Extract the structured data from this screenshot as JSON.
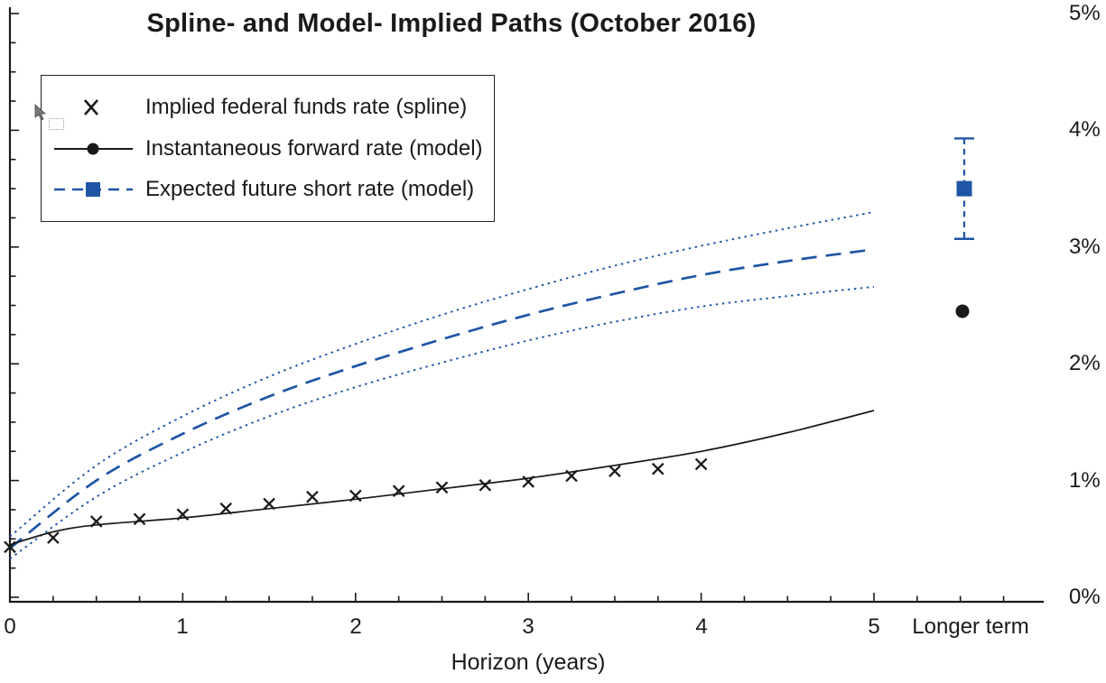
{
  "chart_data": {
    "type": "line",
    "title": "Spline- and Model- Implied Paths (October 2016)",
    "xlabel": "Horizon (years)",
    "ylabel": "",
    "units": "%",
    "xlim": [
      0,
      5
    ],
    "ylim": [
      0,
      5
    ],
    "grid": false,
    "legend_position": "top-left",
    "x_ticks": [
      "0",
      "1",
      "2",
      "3",
      "4",
      "5"
    ],
    "longer_term_label": "Longer term",
    "y_ticks": [
      "0%",
      "1%",
      "2%",
      "3%",
      "4%",
      "5%"
    ],
    "colors": {
      "blue": "#1f55a4",
      "black": "#1a1a1a"
    },
    "series": [
      {
        "name": "Implied federal funds rate (spline)",
        "type": "scatter",
        "marker": "x",
        "color": "#1a1a1a",
        "x": [
          0,
          0.25,
          0.5,
          0.75,
          1,
          1.25,
          1.5,
          1.75,
          2,
          2.25,
          2.5,
          2.75,
          3,
          3.25,
          3.5,
          3.75,
          4
        ],
        "values": [
          0.43,
          0.51,
          0.65,
          0.67,
          0.71,
          0.76,
          0.8,
          0.86,
          0.87,
          0.91,
          0.94,
          0.96,
          0.99,
          1.04,
          1.08,
          1.1,
          1.14
        ]
      },
      {
        "name": "Instantaneous forward rate (model)",
        "type": "line",
        "style": "solid",
        "marker": "circle",
        "color": "#1a1a1a",
        "x": [
          0,
          0.25,
          0.5,
          1,
          1.5,
          2,
          2.5,
          3,
          3.5,
          4,
          4.5,
          5
        ],
        "values": [
          0.45,
          0.56,
          0.62,
          0.68,
          0.76,
          0.84,
          0.93,
          1.02,
          1.13,
          1.25,
          1.41,
          1.6
        ],
        "longer_term_value": 2.45
      },
      {
        "name": "Expected future short rate (model)",
        "type": "line",
        "style": "long-dash",
        "marker": "square",
        "color": "#1f55a4",
        "x": [
          0,
          0.5,
          1,
          1.5,
          2,
          2.5,
          3,
          3.5,
          4,
          4.5,
          5
        ],
        "values": [
          0.42,
          1.0,
          1.4,
          1.72,
          1.98,
          2.21,
          2.42,
          2.6,
          2.76,
          2.88,
          2.98
        ],
        "longer_term_value": 3.5,
        "longer_term_interval": [
          3.07,
          3.93
        ]
      }
    ],
    "confidence_bands": {
      "series": "Expected future short rate (model)",
      "style": "dotted",
      "color": "#1f55a4",
      "x": [
        0,
        0.5,
        1,
        1.5,
        2,
        2.5,
        3,
        3.5,
        4,
        4.5,
        5
      ],
      "upper": [
        0.52,
        1.13,
        1.55,
        1.89,
        2.17,
        2.42,
        2.64,
        2.84,
        3.01,
        3.16,
        3.3
      ],
      "lower": [
        0.33,
        0.86,
        1.24,
        1.55,
        1.8,
        2.01,
        2.2,
        2.36,
        2.49,
        2.58,
        2.66
      ]
    }
  }
}
